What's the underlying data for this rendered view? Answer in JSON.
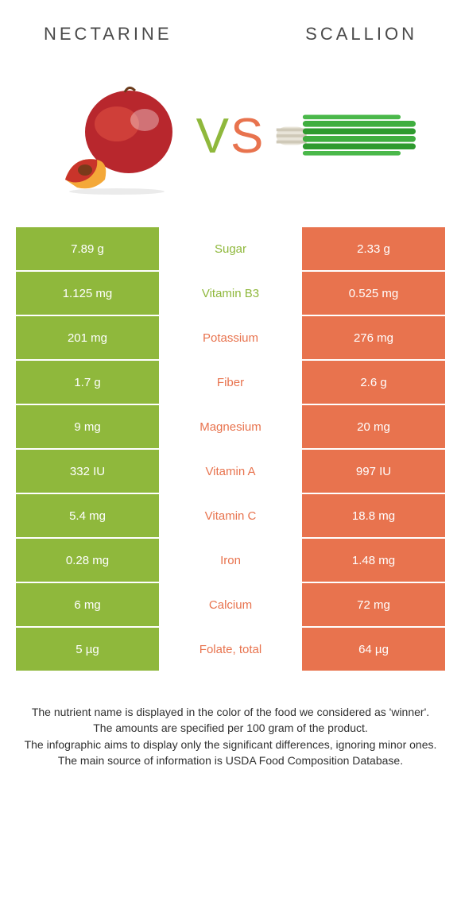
{
  "colors": {
    "left": "#8fb83c",
    "right": "#e8734e",
    "left_text": "#8fb83c",
    "right_text": "#e8734e"
  },
  "header": {
    "left_title": "NECTARINE",
    "right_title": "SCALLION",
    "vs_v": "V",
    "vs_s": "S"
  },
  "rows": [
    {
      "label": "Sugar",
      "left": "7.89 g",
      "right": "2.33 g",
      "winner": "left"
    },
    {
      "label": "Vitamin B3",
      "left": "1.125 mg",
      "right": "0.525 mg",
      "winner": "left"
    },
    {
      "label": "Potassium",
      "left": "201 mg",
      "right": "276 mg",
      "winner": "right"
    },
    {
      "label": "Fiber",
      "left": "1.7 g",
      "right": "2.6 g",
      "winner": "right"
    },
    {
      "label": "Magnesium",
      "left": "9 mg",
      "right": "20 mg",
      "winner": "right"
    },
    {
      "label": "Vitamin A",
      "left": "332 IU",
      "right": "997 IU",
      "winner": "right"
    },
    {
      "label": "Vitamin C",
      "left": "5.4 mg",
      "right": "18.8 mg",
      "winner": "right"
    },
    {
      "label": "Iron",
      "left": "0.28 mg",
      "right": "1.48 mg",
      "winner": "right"
    },
    {
      "label": "Calcium",
      "left": "6 mg",
      "right": "72 mg",
      "winner": "right"
    },
    {
      "label": "Folate, total",
      "left": "5 µg",
      "right": "64 µg",
      "winner": "right"
    }
  ],
  "footnotes": [
    "The nutrient name is displayed in the color of the food we considered as 'winner'.",
    "The amounts are specified per 100 gram of the product.",
    "The infographic aims to display only the significant differences, ignoring minor ones.",
    "The main source of information is USDA Food Composition Database."
  ]
}
